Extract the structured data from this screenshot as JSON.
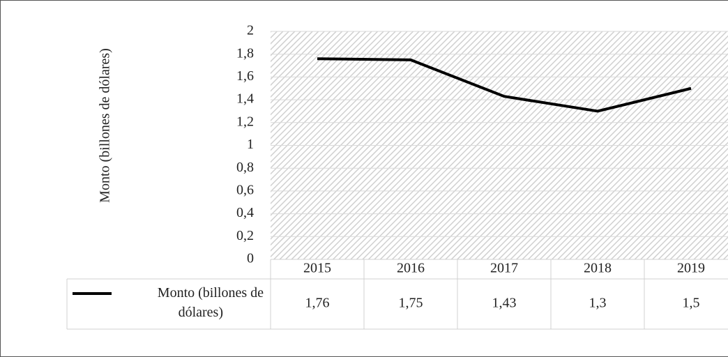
{
  "chart_data": {
    "type": "line",
    "y_label": "Monto (billones de dólares)",
    "categories": [
      "2015",
      "2016",
      "2017",
      "2018",
      "2019"
    ],
    "series": [
      {
        "name": "Monto (billones de dólares)",
        "color": "#000000",
        "values": [
          1.76,
          1.75,
          1.43,
          1.3,
          1.5
        ],
        "value_labels": [
          "1,76",
          "1,75",
          "1,43",
          "1,3",
          "1,5"
        ]
      }
    ],
    "ylim": [
      0,
      2
    ],
    "yticks": [
      0,
      {
        "value": 0.2,
        "label": "0,2"
      },
      {
        "value": 0.4,
        "label": "0,4"
      },
      {
        "value": 0.6,
        "label": "0,6"
      },
      {
        "value": 0.8,
        "label": "0,8"
      },
      1,
      {
        "value": 1.2,
        "label": "1,2"
      },
      {
        "value": 1.4,
        "label": "1,4"
      },
      {
        "value": 1.6,
        "label": "1,6"
      },
      {
        "value": 1.8,
        "label": "1,8"
      },
      2
    ],
    "grid": true,
    "data_table": true
  }
}
